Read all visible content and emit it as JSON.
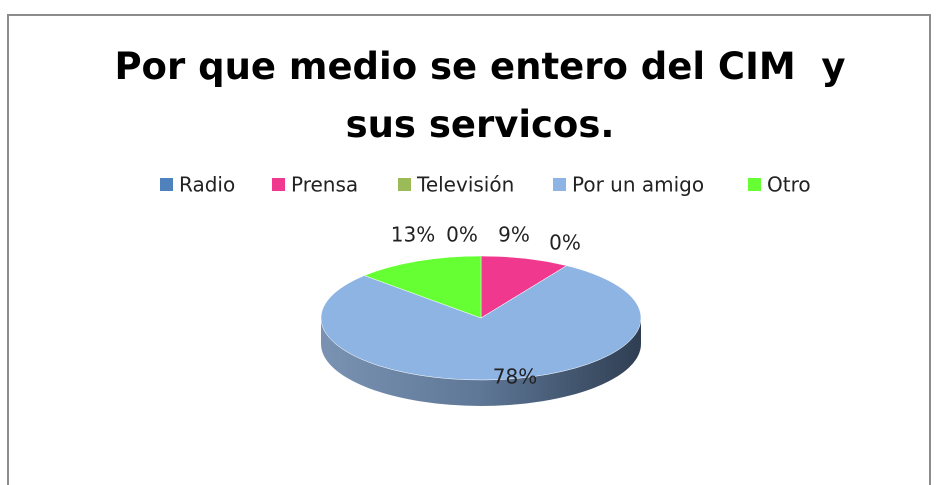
{
  "chart_data": {
    "type": "pie",
    "title": "Por que medio se entero del CIM  y sus servicos.",
    "categories": [
      "Radio",
      "Prensa",
      "Televisión",
      "Por un amigo",
      "Otro"
    ],
    "values": [
      0,
      9,
      0,
      78,
      13
    ],
    "value_labels": [
      "0%",
      "9%",
      "0%",
      "78%",
      "13%"
    ],
    "colors": [
      "#4f81bd",
      "#f0398e",
      "#9bbb59",
      "#8eb4e3",
      "#66ff33"
    ],
    "legend": "top"
  }
}
